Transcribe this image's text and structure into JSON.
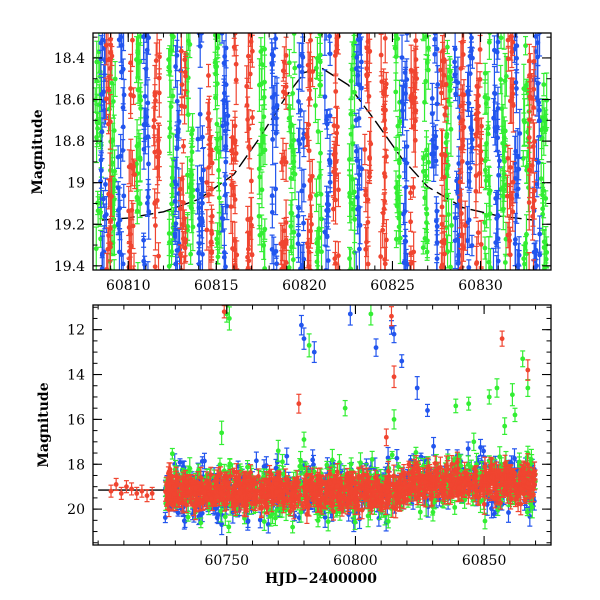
{
  "colors": {
    "green": "#33ee33",
    "blue": "#2255ee",
    "red": "#f04530",
    "model": "#000000"
  },
  "chart_data": [
    {
      "type": "scatter",
      "ylabel": "Magnitude",
      "xlabel": "",
      "xlim": [
        60808,
        60834
      ],
      "ylim": [
        19.42,
        18.28
      ],
      "y_inverted": true,
      "x_ticks": [
        "60810",
        "60815",
        "60820",
        "60825",
        "60830"
      ],
      "y_ticks": [
        "18.4",
        "18.6",
        "18.8",
        "19",
        "19.2",
        "19.4"
      ],
      "x_tick_values": [
        60810,
        60815,
        60820,
        60825,
        60830
      ],
      "y_tick_values": [
        18.4,
        18.6,
        18.8,
        19.0,
        19.2,
        19.4
      ],
      "model_curve": {
        "x": [
          60808.5,
          60810,
          60812,
          60814,
          60816,
          60817.5,
          60819,
          60820,
          60821,
          60822.5,
          60824,
          60825.5,
          60827,
          60829,
          60831,
          60833
        ],
        "y": [
          19.18,
          19.17,
          19.14,
          19.08,
          18.96,
          18.78,
          18.58,
          18.47,
          18.45,
          18.53,
          18.7,
          18.88,
          19.02,
          19.12,
          19.16,
          19.18
        ]
      },
      "series": [
        {
          "color_key": "green",
          "stripes": [
            60808.3,
            60809.1,
            60810.6,
            60812.4,
            60813.5,
            60815.1,
            60817.6,
            60819.3,
            60820.8,
            60822.7,
            60825.3,
            60826.9,
            60828.2,
            60830.4,
            60831.3,
            60832.6,
            60833.6
          ]
        },
        {
          "color_key": "blue",
          "stripes": [
            60808.6,
            60809.6,
            60811.0,
            60812.8,
            60814.1,
            60815.5,
            60818.3,
            60819.8,
            60821.3,
            60823.1,
            60825.7,
            60827.4,
            60828.7,
            60829.4,
            60830.9,
            60832.1,
            60833.2
          ]
        },
        {
          "color_key": "red",
          "stripes": [
            60808.9,
            60810.2,
            60811.6,
            60813.1,
            60814.6,
            60816.0,
            60816.9,
            60818.8,
            60820.3,
            60821.8,
            60823.6,
            60824.5,
            60826.2,
            60827.9,
            60829.0,
            60829.9,
            60831.7,
            60832.9
          ]
        }
      ]
    },
    {
      "type": "scatter",
      "ylabel": "Magnitude",
      "xlabel": "HJD−2400000",
      "xlim": [
        60698,
        60876
      ],
      "ylim": [
        21.6,
        10.9
      ],
      "y_inverted": true,
      "x_ticks": [
        "60750",
        "60800",
        "60850"
      ],
      "y_ticks": [
        "12",
        "14",
        "16",
        "18",
        "20"
      ],
      "x_tick_values": [
        60750,
        60800,
        60850
      ],
      "y_tick_values": [
        12,
        14,
        16,
        18,
        20
      ],
      "baseline": 19.15,
      "baseline_x": [
        60700,
        60726
      ],
      "main_band": {
        "x": [
          60726,
          60870
        ],
        "y_center": 19.2,
        "y_spread": 0.55
      },
      "early_points": {
        "x": [
          60705,
          60707,
          60709,
          60711,
          60713,
          60715,
          60717,
          60719,
          60721
        ],
        "y": [
          19.2,
          18.9,
          19.3,
          19.0,
          19.1,
          19.3,
          19.2,
          19.4,
          19.3
        ]
      },
      "outliers": [
        {
          "color_key": "green",
          "x": [
            60750,
            60751,
            60782,
            60796,
            60806,
            60815,
            60839,
            60844,
            60852,
            60855,
            60861,
            60865,
            60867,
            60862,
            60748,
            60770,
            60780,
            60846,
            60858
          ],
          "y": [
            11.3,
            11.5,
            12.7,
            15.5,
            11.3,
            16.0,
            15.4,
            15.3,
            15.0,
            14.6,
            14.9,
            13.3,
            14.6,
            15.8,
            16.6,
            17.4,
            16.9,
            17.0,
            16.3
          ]
        },
        {
          "color_key": "blue",
          "x": [
            60779,
            60780,
            60784,
            60798,
            60808,
            60814,
            60815,
            60818,
            60824,
            60828
          ],
          "y": [
            11.8,
            12.4,
            13.0,
            11.3,
            12.8,
            11.9,
            12.2,
            13.4,
            14.6,
            15.6
          ]
        },
        {
          "color_key": "red",
          "x": [
            60749,
            60778,
            60814,
            60815,
            60857,
            60867,
            60812
          ],
          "y": [
            11.2,
            15.3,
            11.4,
            14.1,
            12.4,
            13.8,
            16.8
          ]
        }
      ]
    }
  ]
}
